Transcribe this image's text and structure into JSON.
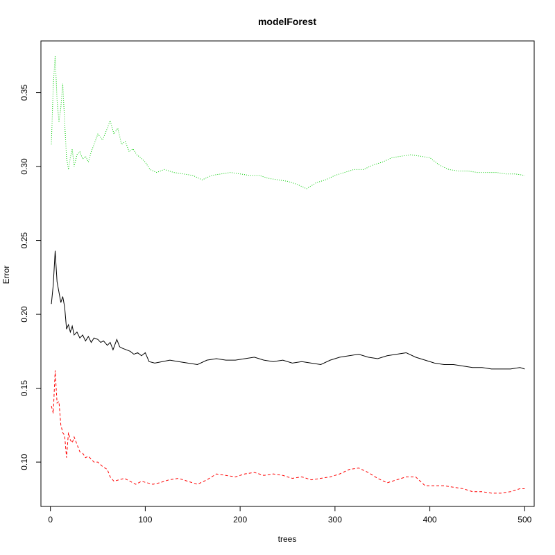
{
  "chart_data": {
    "type": "line",
    "title": "modelForest",
    "xlabel": "trees",
    "ylabel": "Error",
    "xlim": [
      -10,
      510
    ],
    "ylim": [
      0.07,
      0.385
    ],
    "xticks": [
      0,
      100,
      200,
      300,
      400,
      500
    ],
    "yticks": [
      0.1,
      0.15,
      0.2,
      0.25,
      0.3,
      0.35
    ],
    "xtick_labels": [
      "0",
      "100",
      "200",
      "300",
      "400",
      "500"
    ],
    "ytick_labels": [
      "0.10",
      "0.15",
      "0.20",
      "0.25",
      "0.30",
      "0.35"
    ],
    "grid": false,
    "legend": "none",
    "series": [
      {
        "color": "#000000",
        "dash": "solid",
        "points": [
          [
            1,
            0.207
          ],
          [
            3,
            0.22
          ],
          [
            5,
            0.243
          ],
          [
            7,
            0.222
          ],
          [
            9,
            0.215
          ],
          [
            11,
            0.208
          ],
          [
            13,
            0.212
          ],
          [
            15,
            0.205
          ],
          [
            17,
            0.19
          ],
          [
            19,
            0.193
          ],
          [
            21,
            0.188
          ],
          [
            23,
            0.192
          ],
          [
            25,
            0.186
          ],
          [
            28,
            0.188
          ],
          [
            31,
            0.184
          ],
          [
            34,
            0.186
          ],
          [
            37,
            0.182
          ],
          [
            40,
            0.185
          ],
          [
            43,
            0.181
          ],
          [
            46,
            0.184
          ],
          [
            50,
            0.183
          ],
          [
            53,
            0.181
          ],
          [
            56,
            0.182
          ],
          [
            60,
            0.179
          ],
          [
            63,
            0.181
          ],
          [
            66,
            0.176
          ],
          [
            70,
            0.183
          ],
          [
            73,
            0.178
          ],
          [
            76,
            0.177
          ],
          [
            80,
            0.176
          ],
          [
            84,
            0.175
          ],
          [
            88,
            0.173
          ],
          [
            92,
            0.174
          ],
          [
            96,
            0.172
          ],
          [
            100,
            0.174
          ],
          [
            104,
            0.168
          ],
          [
            110,
            0.167
          ],
          [
            118,
            0.168
          ],
          [
            126,
            0.169
          ],
          [
            135,
            0.168
          ],
          [
            145,
            0.167
          ],
          [
            155,
            0.166
          ],
          [
            165,
            0.169
          ],
          [
            175,
            0.17
          ],
          [
            185,
            0.169
          ],
          [
            195,
            0.169
          ],
          [
            205,
            0.17
          ],
          [
            215,
            0.171
          ],
          [
            225,
            0.169
          ],
          [
            235,
            0.168
          ],
          [
            245,
            0.169
          ],
          [
            255,
            0.167
          ],
          [
            265,
            0.168
          ],
          [
            275,
            0.167
          ],
          [
            285,
            0.166
          ],
          [
            295,
            0.169
          ],
          [
            305,
            0.171
          ],
          [
            315,
            0.172
          ],
          [
            325,
            0.173
          ],
          [
            335,
            0.171
          ],
          [
            345,
            0.17
          ],
          [
            355,
            0.172
          ],
          [
            365,
            0.173
          ],
          [
            375,
            0.174
          ],
          [
            385,
            0.171
          ],
          [
            395,
            0.169
          ],
          [
            405,
            0.167
          ],
          [
            415,
            0.166
          ],
          [
            425,
            0.166
          ],
          [
            435,
            0.165
          ],
          [
            445,
            0.164
          ],
          [
            455,
            0.164
          ],
          [
            465,
            0.163
          ],
          [
            475,
            0.163
          ],
          [
            485,
            0.163
          ],
          [
            495,
            0.164
          ],
          [
            500,
            0.163
          ]
        ]
      },
      {
        "color": "#ff0000",
        "dash": "dashed",
        "points": [
          [
            1,
            0.138
          ],
          [
            3,
            0.133
          ],
          [
            5,
            0.162
          ],
          [
            7,
            0.14
          ],
          [
            9,
            0.141
          ],
          [
            11,
            0.125
          ],
          [
            13,
            0.12
          ],
          [
            15,
            0.118
          ],
          [
            17,
            0.103
          ],
          [
            19,
            0.12
          ],
          [
            21,
            0.115
          ],
          [
            23,
            0.113
          ],
          [
            25,
            0.117
          ],
          [
            28,
            0.112
          ],
          [
            31,
            0.107
          ],
          [
            34,
            0.106
          ],
          [
            37,
            0.103
          ],
          [
            40,
            0.104
          ],
          [
            43,
            0.102
          ],
          [
            46,
            0.1
          ],
          [
            50,
            0.1
          ],
          [
            55,
            0.097
          ],
          [
            60,
            0.095
          ],
          [
            63,
            0.09
          ],
          [
            67,
            0.087
          ],
          [
            72,
            0.088
          ],
          [
            78,
            0.089
          ],
          [
            84,
            0.087
          ],
          [
            90,
            0.085
          ],
          [
            96,
            0.087
          ],
          [
            102,
            0.086
          ],
          [
            108,
            0.085
          ],
          [
            115,
            0.086
          ],
          [
            125,
            0.088
          ],
          [
            135,
            0.089
          ],
          [
            145,
            0.087
          ],
          [
            155,
            0.085
          ],
          [
            165,
            0.088
          ],
          [
            175,
            0.092
          ],
          [
            185,
            0.091
          ],
          [
            195,
            0.09
          ],
          [
            205,
            0.092
          ],
          [
            215,
            0.093
          ],
          [
            225,
            0.091
          ],
          [
            235,
            0.092
          ],
          [
            245,
            0.091
          ],
          [
            255,
            0.089
          ],
          [
            265,
            0.09
          ],
          [
            275,
            0.088
          ],
          [
            285,
            0.089
          ],
          [
            295,
            0.09
          ],
          [
            305,
            0.092
          ],
          [
            315,
            0.095
          ],
          [
            325,
            0.096
          ],
          [
            335,
            0.093
          ],
          [
            345,
            0.089
          ],
          [
            355,
            0.086
          ],
          [
            365,
            0.088
          ],
          [
            375,
            0.09
          ],
          [
            385,
            0.09
          ],
          [
            395,
            0.084
          ],
          [
            405,
            0.084
          ],
          [
            415,
            0.084
          ],
          [
            425,
            0.083
          ],
          [
            435,
            0.082
          ],
          [
            445,
            0.08
          ],
          [
            455,
            0.08
          ],
          [
            465,
            0.079
          ],
          [
            475,
            0.079
          ],
          [
            485,
            0.08
          ],
          [
            495,
            0.082
          ],
          [
            500,
            0.082
          ]
        ]
      },
      {
        "color": "#00cc00",
        "dash": "dotted",
        "points": [
          [
            1,
            0.315
          ],
          [
            3,
            0.355
          ],
          [
            5,
            0.375
          ],
          [
            7,
            0.345
          ],
          [
            9,
            0.33
          ],
          [
            11,
            0.34
          ],
          [
            13,
            0.356
          ],
          [
            15,
            0.33
          ],
          [
            17,
            0.306
          ],
          [
            19,
            0.298
          ],
          [
            21,
            0.306
          ],
          [
            23,
            0.312
          ],
          [
            25,
            0.3
          ],
          [
            28,
            0.308
          ],
          [
            31,
            0.31
          ],
          [
            34,
            0.305
          ],
          [
            37,
            0.307
          ],
          [
            40,
            0.303
          ],
          [
            43,
            0.31
          ],
          [
            46,
            0.315
          ],
          [
            50,
            0.322
          ],
          [
            55,
            0.318
          ],
          [
            60,
            0.326
          ],
          [
            63,
            0.331
          ],
          [
            67,
            0.322
          ],
          [
            71,
            0.326
          ],
          [
            75,
            0.315
          ],
          [
            79,
            0.317
          ],
          [
            83,
            0.31
          ],
          [
            87,
            0.312
          ],
          [
            91,
            0.308
          ],
          [
            95,
            0.306
          ],
          [
            100,
            0.303
          ],
          [
            105,
            0.298
          ],
          [
            112,
            0.296
          ],
          [
            120,
            0.298
          ],
          [
            130,
            0.296
          ],
          [
            140,
            0.295
          ],
          [
            150,
            0.294
          ],
          [
            160,
            0.291
          ],
          [
            170,
            0.294
          ],
          [
            180,
            0.295
          ],
          [
            190,
            0.296
          ],
          [
            200,
            0.295
          ],
          [
            210,
            0.294
          ],
          [
            220,
            0.294
          ],
          [
            230,
            0.292
          ],
          [
            240,
            0.291
          ],
          [
            250,
            0.29
          ],
          [
            260,
            0.288
          ],
          [
            270,
            0.285
          ],
          [
            280,
            0.289
          ],
          [
            290,
            0.291
          ],
          [
            300,
            0.294
          ],
          [
            310,
            0.296
          ],
          [
            320,
            0.298
          ],
          [
            330,
            0.298
          ],
          [
            340,
            0.301
          ],
          [
            350,
            0.303
          ],
          [
            360,
            0.306
          ],
          [
            370,
            0.307
          ],
          [
            380,
            0.308
          ],
          [
            390,
            0.307
          ],
          [
            400,
            0.306
          ],
          [
            410,
            0.301
          ],
          [
            420,
            0.298
          ],
          [
            430,
            0.297
          ],
          [
            440,
            0.297
          ],
          [
            450,
            0.296
          ],
          [
            460,
            0.296
          ],
          [
            470,
            0.296
          ],
          [
            480,
            0.295
          ],
          [
            490,
            0.295
          ],
          [
            500,
            0.294
          ]
        ]
      }
    ]
  }
}
